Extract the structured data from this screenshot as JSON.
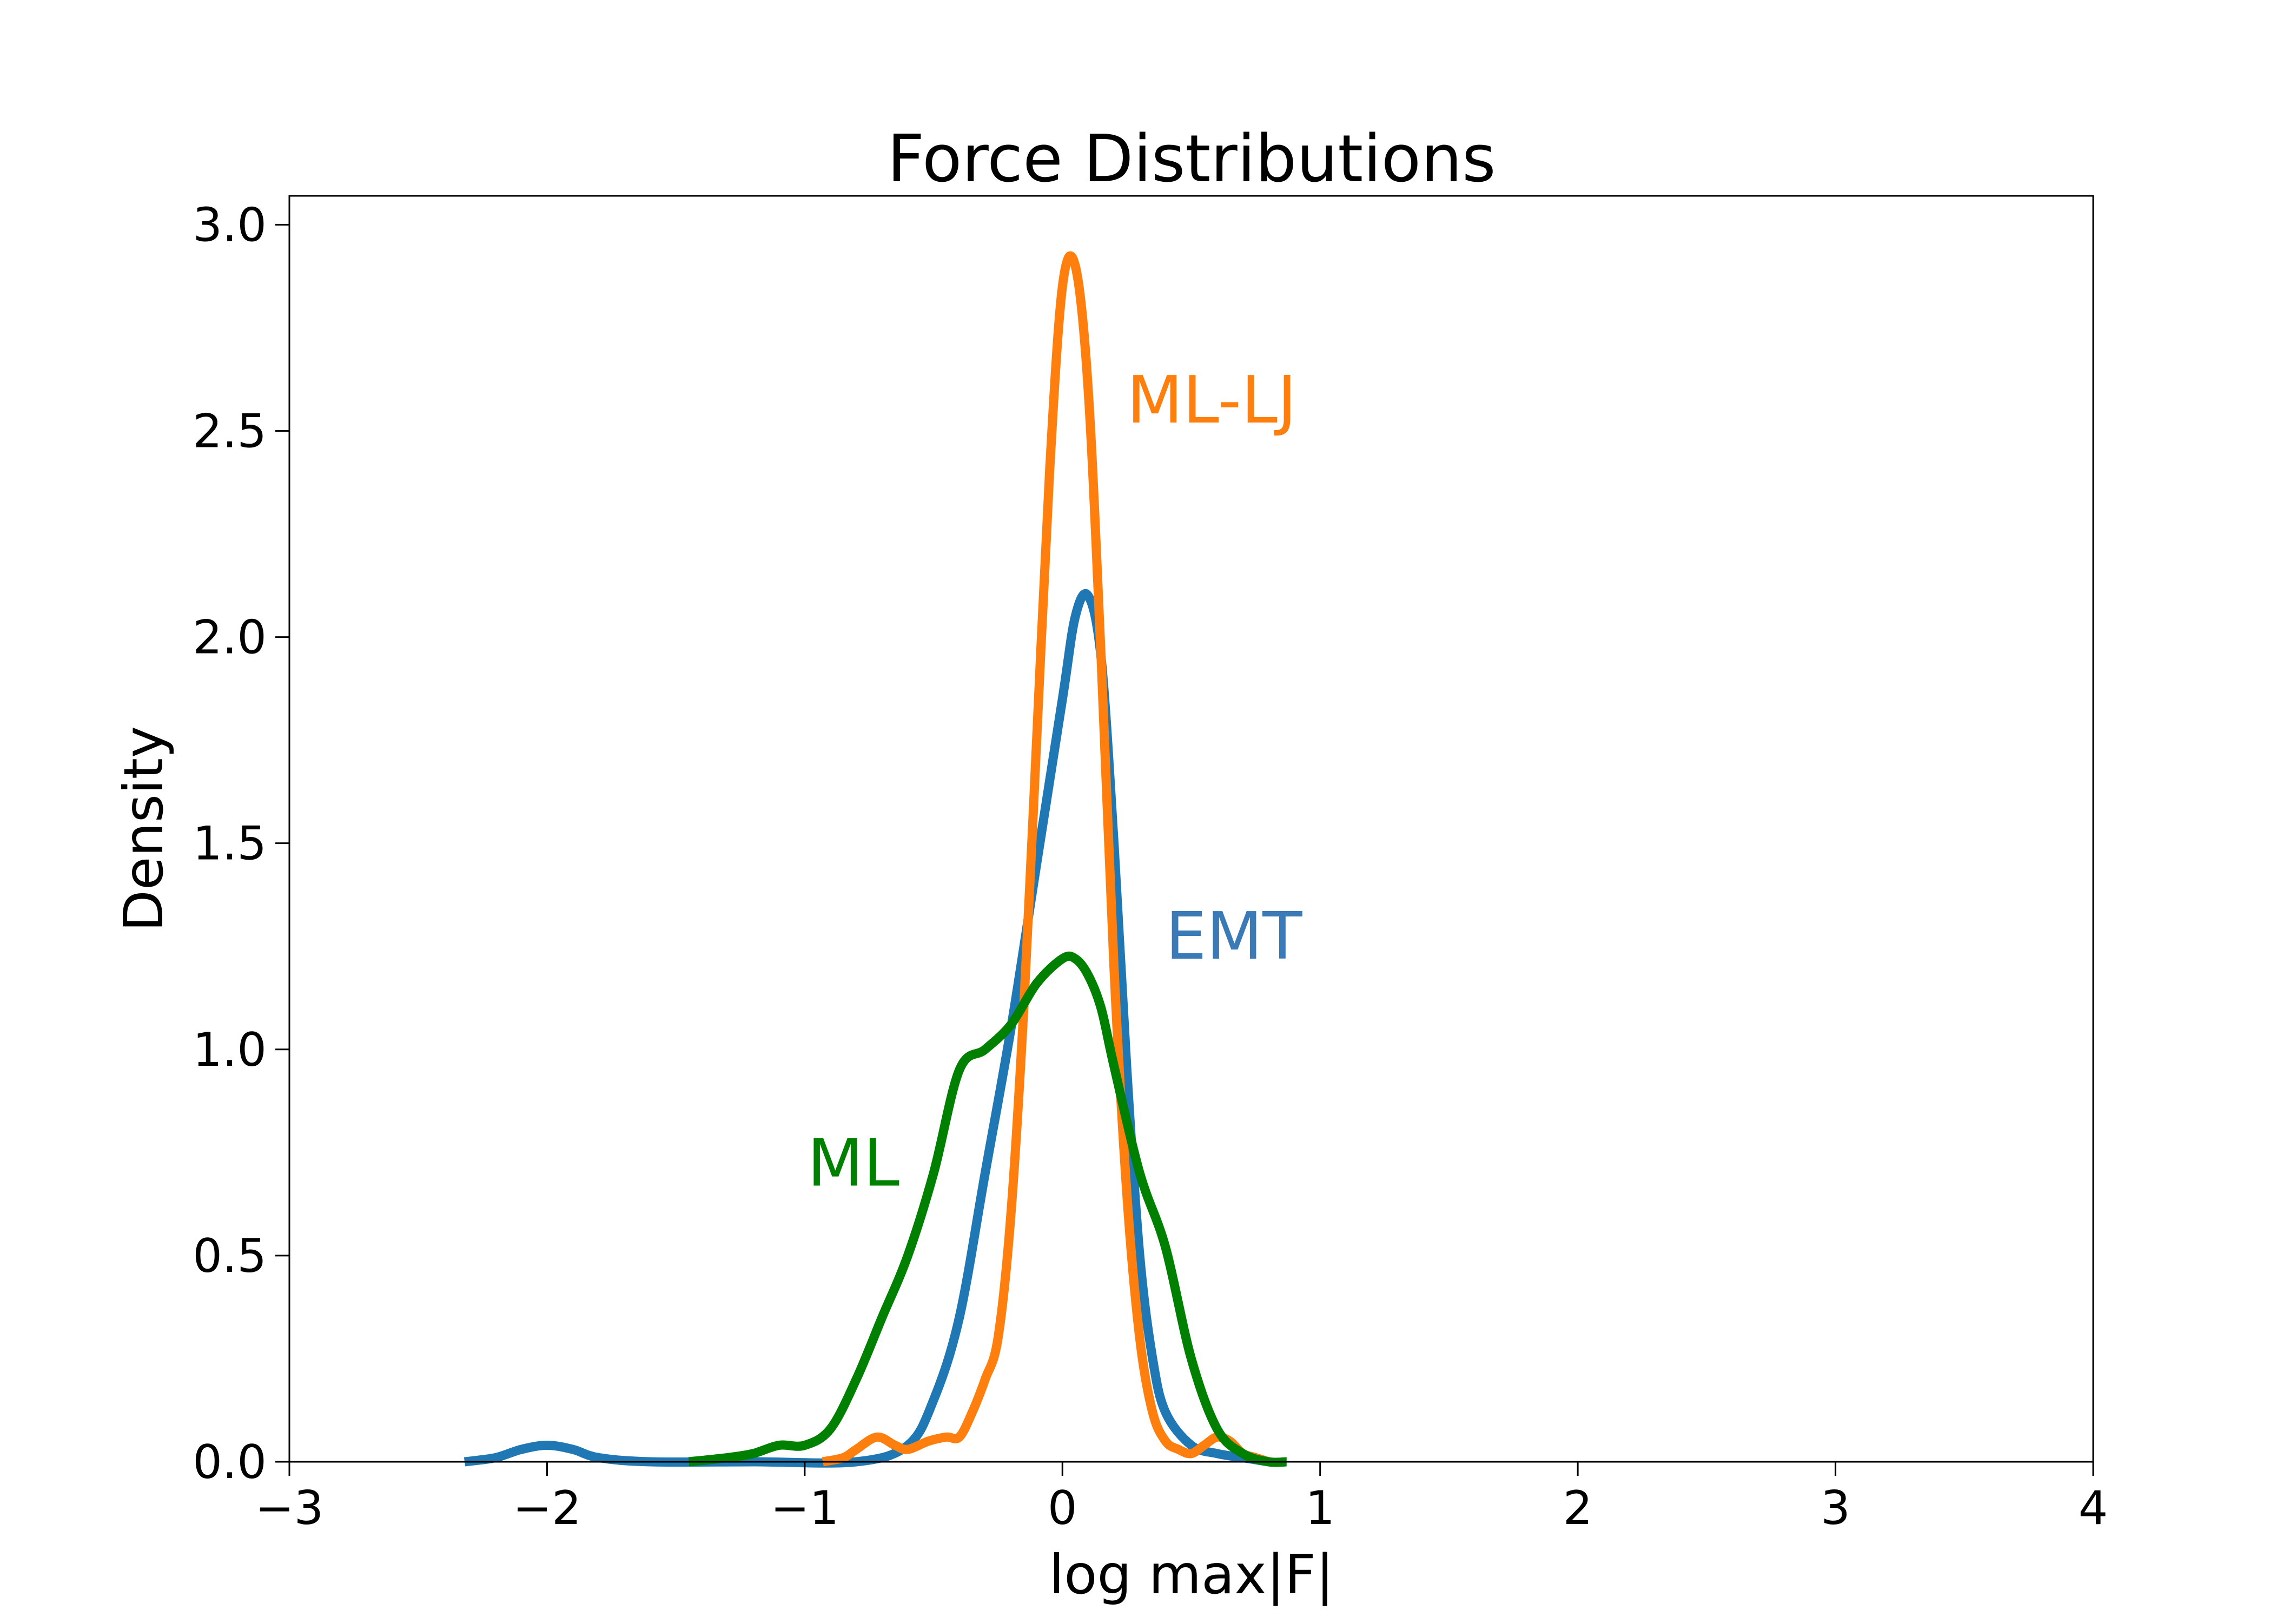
{
  "chart_data": {
    "type": "line",
    "title": "Force Distributions",
    "xlabel": "log max|F|",
    "ylabel": "Density",
    "xlim": [
      -3,
      4
    ],
    "ylim": [
      0,
      3.07
    ],
    "x_ticks": [
      -3,
      -2,
      -1,
      0,
      1,
      2,
      3,
      4
    ],
    "x_tick_labels": [
      "−3",
      "−2",
      "−1",
      "0",
      "1",
      "2",
      "3",
      "4"
    ],
    "y_ticks": [
      0.0,
      0.5,
      1.0,
      1.5,
      2.0,
      2.5,
      3.0
    ],
    "y_tick_labels": [
      "0.0",
      "0.5",
      "1.0",
      "1.5",
      "2.0",
      "2.5",
      "3.0"
    ],
    "grid": false,
    "legend": "none",
    "series": [
      {
        "label": "EMT",
        "color": "#1f77b4",
        "x": [
          -2.32,
          -2.2,
          -2.1,
          -2.0,
          -1.9,
          -1.8,
          -1.6,
          -1.2,
          -0.8,
          -0.6,
          -0.5,
          -0.4,
          -0.3,
          -0.2,
          -0.1,
          0.0,
          0.05,
          0.1,
          0.15,
          0.2,
          0.25,
          0.3,
          0.35,
          0.4,
          0.5,
          0.6,
          0.7,
          0.8
        ],
        "y": [
          0.0,
          0.01,
          0.03,
          0.04,
          0.03,
          0.01,
          0.0,
          0.0,
          0.0,
          0.04,
          0.15,
          0.35,
          0.7,
          1.05,
          1.45,
          1.85,
          2.05,
          2.1,
          1.95,
          1.5,
          0.95,
          0.5,
          0.25,
          0.12,
          0.04,
          0.02,
          0.01,
          0.0
        ]
      },
      {
        "label": "ML-LJ",
        "color": "#ff7f0e",
        "x": [
          -0.93,
          -0.85,
          -0.8,
          -0.72,
          -0.65,
          -0.6,
          -0.52,
          -0.45,
          -0.4,
          -0.35,
          -0.3,
          -0.25,
          -0.2,
          -0.15,
          -0.1,
          -0.05,
          0.0,
          0.05,
          0.1,
          0.15,
          0.2,
          0.25,
          0.3,
          0.35,
          0.4,
          0.45,
          0.5,
          0.55,
          0.6,
          0.65,
          0.7,
          0.75,
          0.8
        ],
        "y": [
          0.0,
          0.01,
          0.03,
          0.06,
          0.04,
          0.03,
          0.05,
          0.06,
          0.06,
          0.12,
          0.2,
          0.3,
          0.6,
          1.1,
          1.75,
          2.4,
          2.85,
          2.9,
          2.6,
          1.95,
          1.2,
          0.65,
          0.3,
          0.12,
          0.05,
          0.03,
          0.02,
          0.04,
          0.06,
          0.05,
          0.02,
          0.01,
          0.0
        ]
      },
      {
        "label": "ML",
        "color": "#008000",
        "x": [
          -1.45,
          -1.3,
          -1.2,
          -1.1,
          -1.0,
          -0.9,
          -0.8,
          -0.7,
          -0.6,
          -0.5,
          -0.4,
          -0.3,
          -0.2,
          -0.1,
          0.0,
          0.05,
          0.1,
          0.15,
          0.2,
          0.3,
          0.4,
          0.5,
          0.6,
          0.7,
          0.8,
          0.87
        ],
        "y": [
          0.0,
          0.01,
          0.02,
          0.04,
          0.04,
          0.08,
          0.2,
          0.35,
          0.5,
          0.7,
          0.95,
          1.0,
          1.06,
          1.16,
          1.22,
          1.22,
          1.18,
          1.1,
          0.96,
          0.7,
          0.52,
          0.25,
          0.08,
          0.02,
          0.0,
          0.0
        ]
      }
    ],
    "annotations": [
      {
        "text": "ML-LJ",
        "x": 0.25,
        "y": 2.52,
        "color": "#ff7f0e"
      },
      {
        "text": "EMT",
        "x": 0.4,
        "y": 1.22,
        "color": "#3a7ab7"
      },
      {
        "text": "ML",
        "x": -0.99,
        "y": 0.67,
        "color": "#008000"
      }
    ]
  }
}
